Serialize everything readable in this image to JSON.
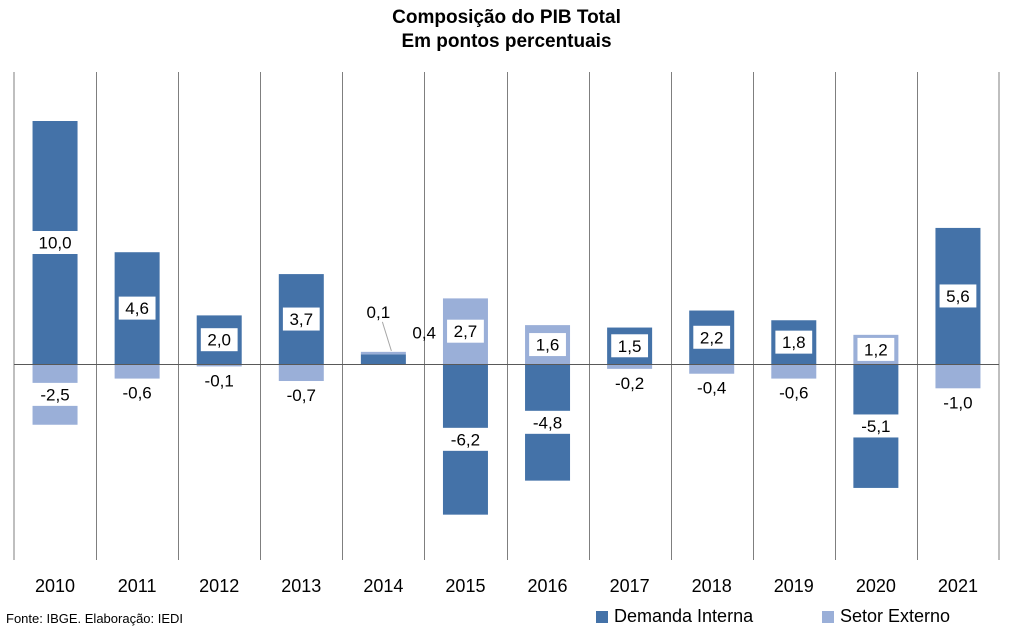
{
  "chart_data": {
    "type": "bar",
    "stacked": true,
    "title": "Composição do PIB Total",
    "subtitle": "Em pontos percentuais",
    "categories": [
      "2010",
      "2011",
      "2012",
      "2013",
      "2014",
      "2015",
      "2016",
      "2017",
      "2018",
      "2019",
      "2020",
      "2021"
    ],
    "series": [
      {
        "name": "Demanda Interna",
        "color": "#4472a8",
        "values": [
          10.0,
          4.6,
          2.0,
          3.7,
          0.4,
          -6.2,
          -4.8,
          1.5,
          2.2,
          1.8,
          -5.1,
          5.6
        ],
        "labels": [
          "10,0",
          "4,6",
          "2,0",
          "3,7",
          "0,4",
          "-6,2",
          "-4,8",
          "1,5",
          "2,2",
          "1,8",
          "-5,1",
          "5,6"
        ]
      },
      {
        "name": "Setor Externo",
        "color": "#9aafd8",
        "values": [
          -2.5,
          -0.6,
          -0.1,
          -0.7,
          0.1,
          2.7,
          1.6,
          -0.2,
          -0.4,
          -0.6,
          1.2,
          -1.0
        ],
        "labels": [
          "-2,5",
          "-0,6",
          "-0,1",
          "-0,7",
          "0,1",
          "2,7",
          "1,6",
          "-0,2",
          "-0,4",
          "-0,6",
          "1,2",
          "-1,0"
        ]
      }
    ],
    "ylim": [
      -8.2,
      12.0
    ],
    "grid": "vertical category separators",
    "legend": "bottom-right"
  },
  "source": "Fonte: IBGE. Elaboração: IEDI"
}
